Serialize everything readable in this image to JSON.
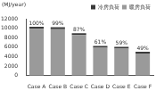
{
  "chart_data": {
    "type": "bar",
    "y_label": "(MJ/year)",
    "categories": [
      "Case A",
      "Case B",
      "Case C",
      "Case D",
      "Case E",
      "Case F"
    ],
    "series": [
      {
        "name": "暖房負荷",
        "color": "#9a9a9a",
        "values": [
          9900,
          9800,
          8560,
          5880,
          5680,
          4650
        ]
      },
      {
        "name": "冷房負荷",
        "color": "#3a3a3a",
        "values": [
          400,
          400,
          400,
          400,
          400,
          400
        ]
      }
    ],
    "annotations": [
      "100%",
      "99%",
      "87%",
      "61%",
      "59%",
      "49%"
    ],
    "stacked": true,
    "legend": "top-right",
    "grid": false,
    "ylim": [
      0,
      12000
    ],
    "yticks": [
      0,
      2000,
      4000,
      6000,
      8000,
      10000,
      12000
    ]
  }
}
